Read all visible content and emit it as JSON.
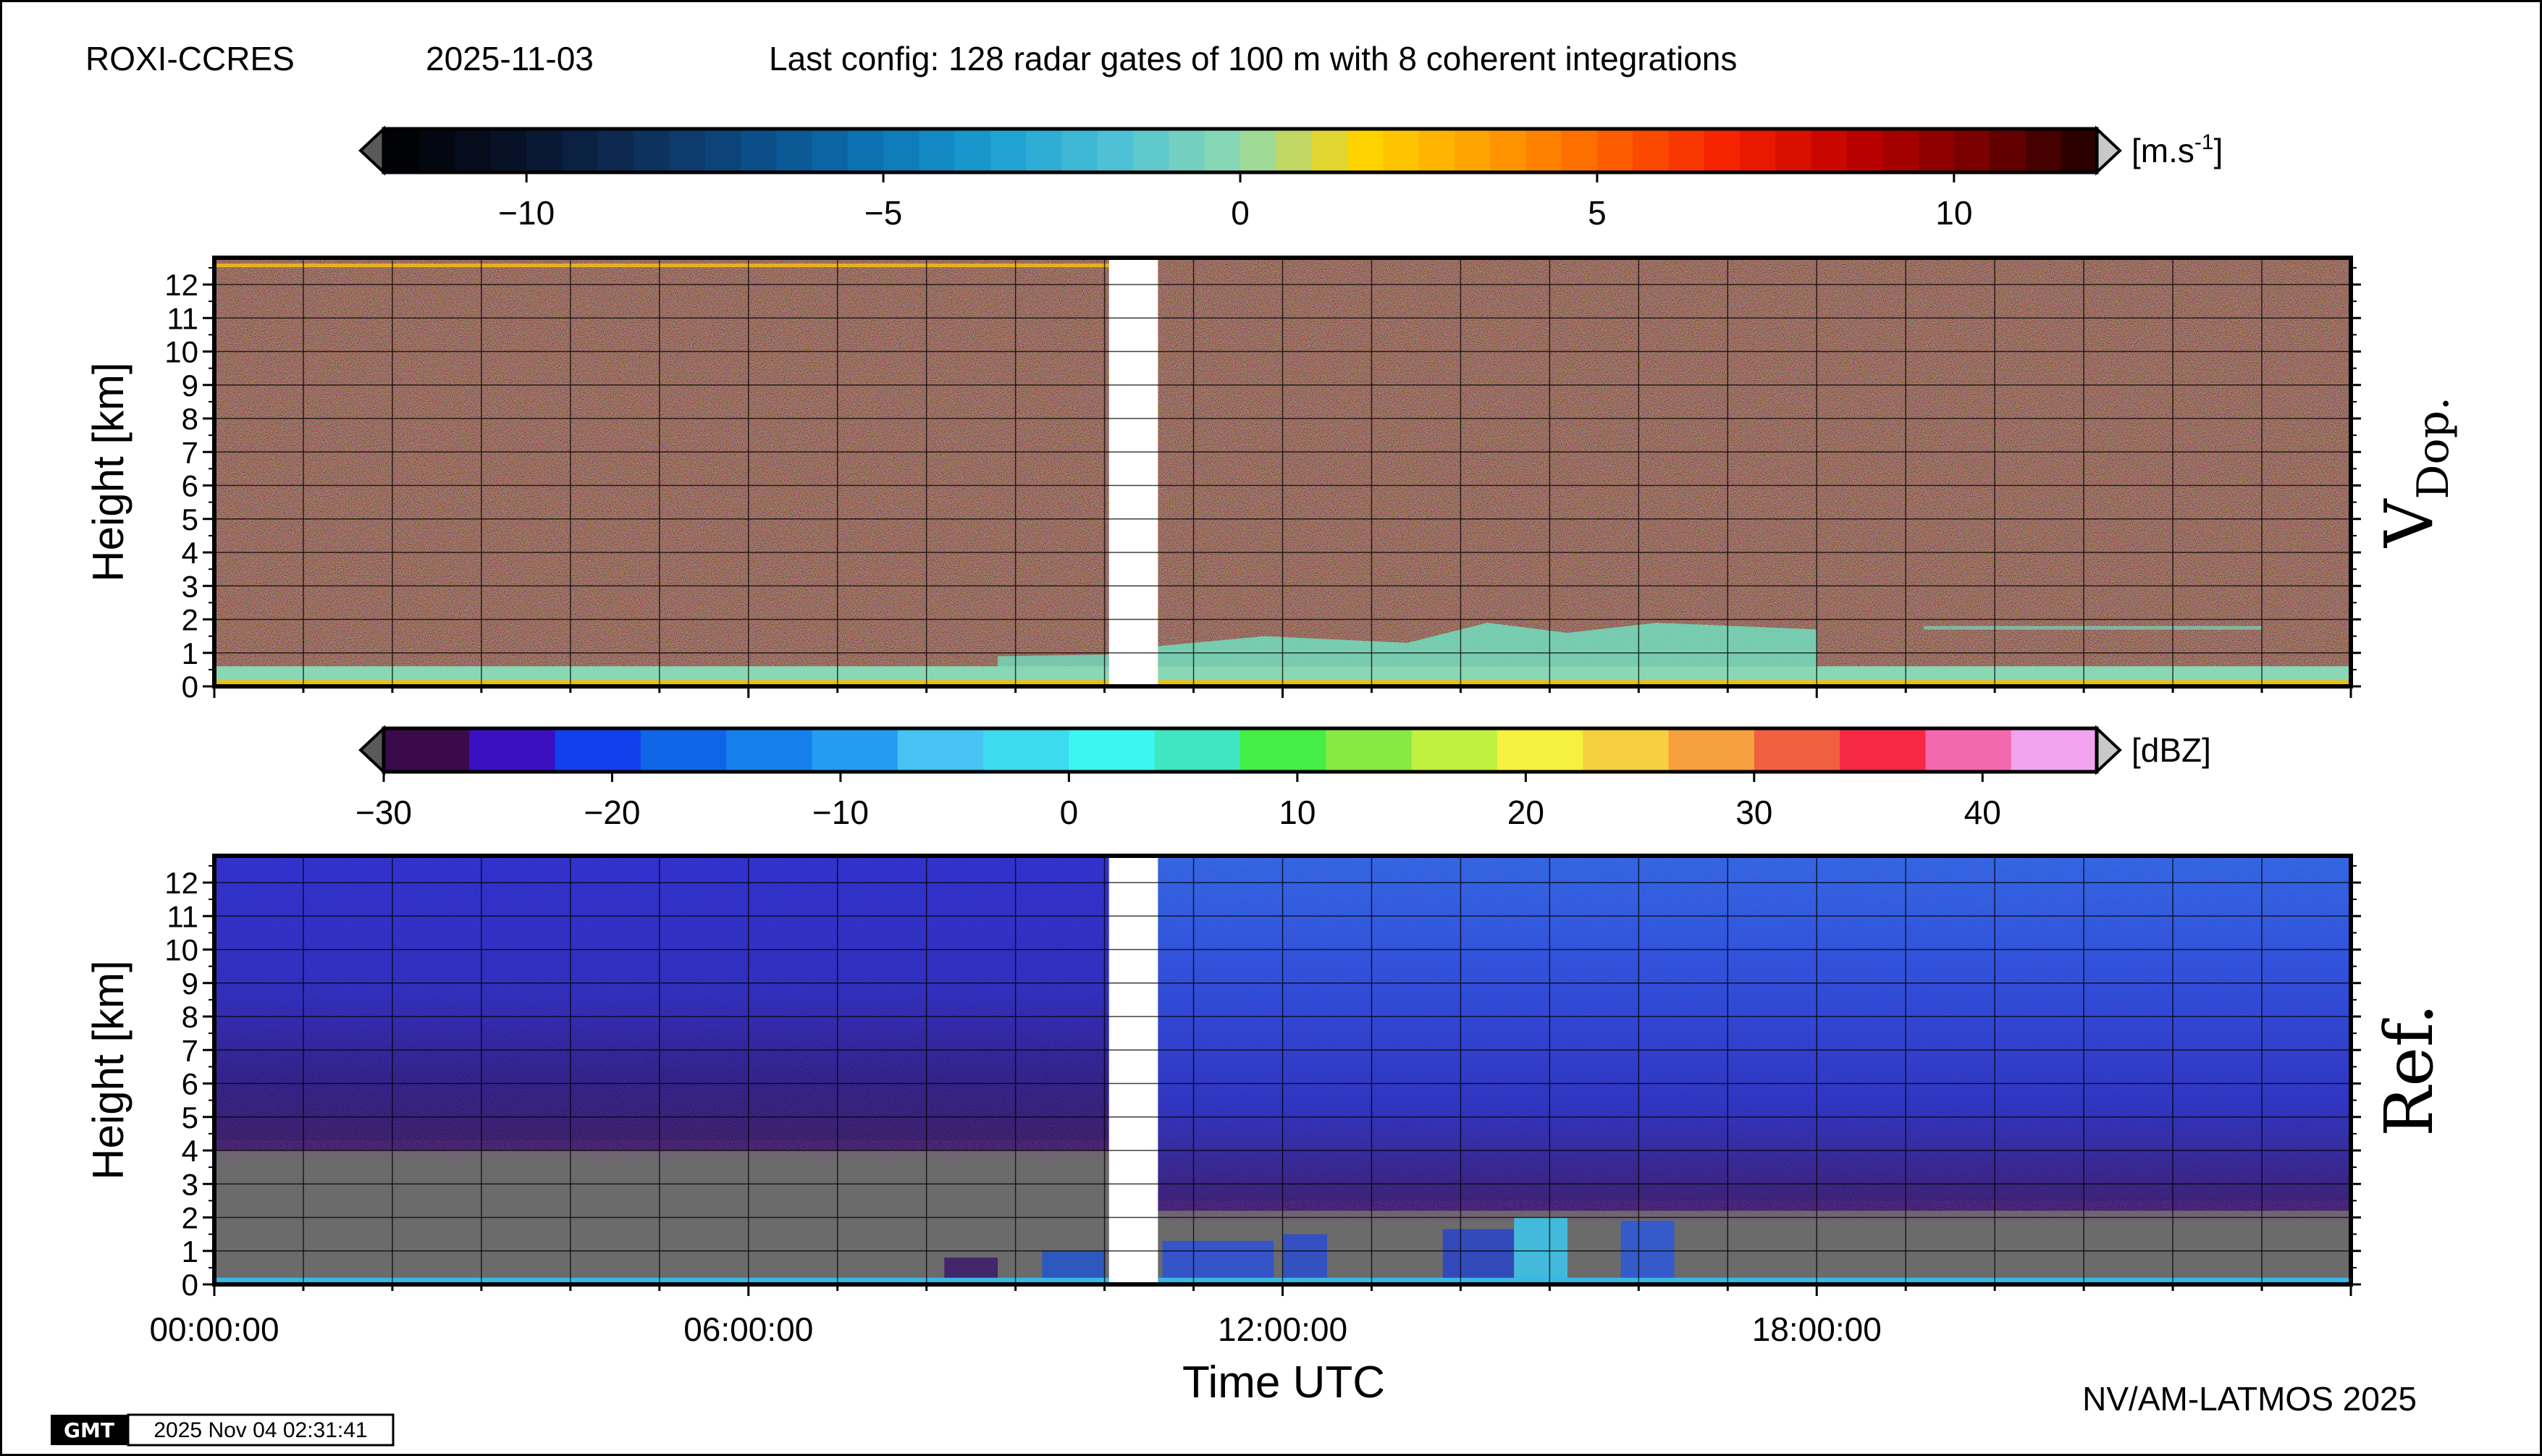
{
  "header": {
    "station": "ROXI-CCRES",
    "date": "2025-11-03",
    "config": "Last config: 128 radar gates of 100 m with 8 coherent integrations"
  },
  "footer": {
    "credit": "NV/AM-LATMOS 2025",
    "gmt_logo": "GMT",
    "timestamp": "2025 Nov 04 02:31:41"
  },
  "colors": {
    "missing_data": "#ffffff",
    "below_threshold": "#6b6b6b",
    "frame": "#000000"
  },
  "chart_data": [
    {
      "type": "heatmap",
      "name": "V Dop.",
      "panel_label": "V",
      "panel_label_sub": "Dop.",
      "ylabel": "Height [km]",
      "xlabel": "",
      "ylim": [
        0,
        12.8
      ],
      "yticks": [
        "0",
        "1",
        "2",
        "3",
        "4",
        "5",
        "6",
        "7",
        "8",
        "9",
        "10",
        "11",
        "12"
      ],
      "xlim_hours": [
        0,
        24
      ],
      "xticks": [],
      "gap_hours": [
        10.05,
        10.6
      ],
      "colorbar": {
        "unit_text": "[m.s",
        "unit_sup": "-1",
        "unit_close": "]",
        "min": -12,
        "max": 12,
        "ticks": [
          "−10",
          "−5",
          "0",
          "5",
          "10"
        ],
        "tick_values": [
          -10,
          -5,
          0,
          5,
          10
        ],
        "stops": [
          "#000000",
          "#071126",
          "#0e2c55",
          "#0b4b85",
          "#0b73b3",
          "#1a9fd2",
          "#4fc2d6",
          "#8fdab0",
          "#ffd400",
          "#ffa000",
          "#ff6000",
          "#f52000",
          "#c00000",
          "#7a0000",
          "#200000"
        ]
      },
      "features": [
        {
          "desc": "low-level cloud",
          "start_h": 10.6,
          "end_h": 18.0,
          "top_km": 1.9
        },
        {
          "desc": "surface layer",
          "start_h": 0,
          "end_h": 24,
          "top_km": 0.6
        }
      ]
    },
    {
      "type": "heatmap",
      "name": "Ref.",
      "panel_label": "Ref.",
      "ylabel": "Height [km]",
      "xlabel": "Time UTC",
      "ylim": [
        0,
        12.8
      ],
      "yticks": [
        "0",
        "1",
        "2",
        "3",
        "4",
        "5",
        "6",
        "7",
        "8",
        "9",
        "10",
        "11",
        "12"
      ],
      "xlim_hours": [
        0,
        24
      ],
      "xticks": [
        "00:00:00",
        "06:00:00",
        "12:00:00",
        "18:00:00"
      ],
      "xtick_values": [
        0,
        6,
        12,
        18
      ],
      "gap_hours": [
        10.05,
        10.6
      ],
      "colorbar": {
        "unit_text": "[dBZ]",
        "min": -30,
        "max": 45,
        "ticks": [
          "−30",
          "−20",
          "−10",
          "0",
          "10",
          "20",
          "30",
          "40"
        ],
        "tick_values": [
          -30,
          -20,
          -10,
          0,
          10,
          20,
          30,
          40
        ],
        "bins": [
          -30,
          -26.25,
          -22.5,
          -18.75,
          -15,
          -11.25,
          -7.5,
          -3.75,
          0,
          3.75,
          7.5,
          11.25,
          15,
          18.75,
          22.5,
          26.25,
          30,
          33.75,
          37.5,
          41.25,
          45
        ],
        "colors": [
          "#3a0a4a",
          "#3a10c0",
          "#1040ee",
          "#1065e6",
          "#1580ec",
          "#239cf2",
          "#48c3f4",
          "#3cdcee",
          "#3cf6f2",
          "#40e6c0",
          "#44ee44",
          "#88e844",
          "#c0f040",
          "#f6f040",
          "#f6d040",
          "#f6a040",
          "#f06040",
          "#f62844",
          "#f468b0",
          "#f2a4f0",
          "#f8d8f8"
        ]
      },
      "features": [
        {
          "desc": "noise floor top",
          "value_dbz": -25,
          "top_km_before_gap": 4.0,
          "top_km_after_gap": 2.2
        },
        {
          "desc": "convective cell",
          "time_h": 14.9,
          "top_km": 2.0,
          "peak_dbz": 0
        }
      ]
    }
  ]
}
